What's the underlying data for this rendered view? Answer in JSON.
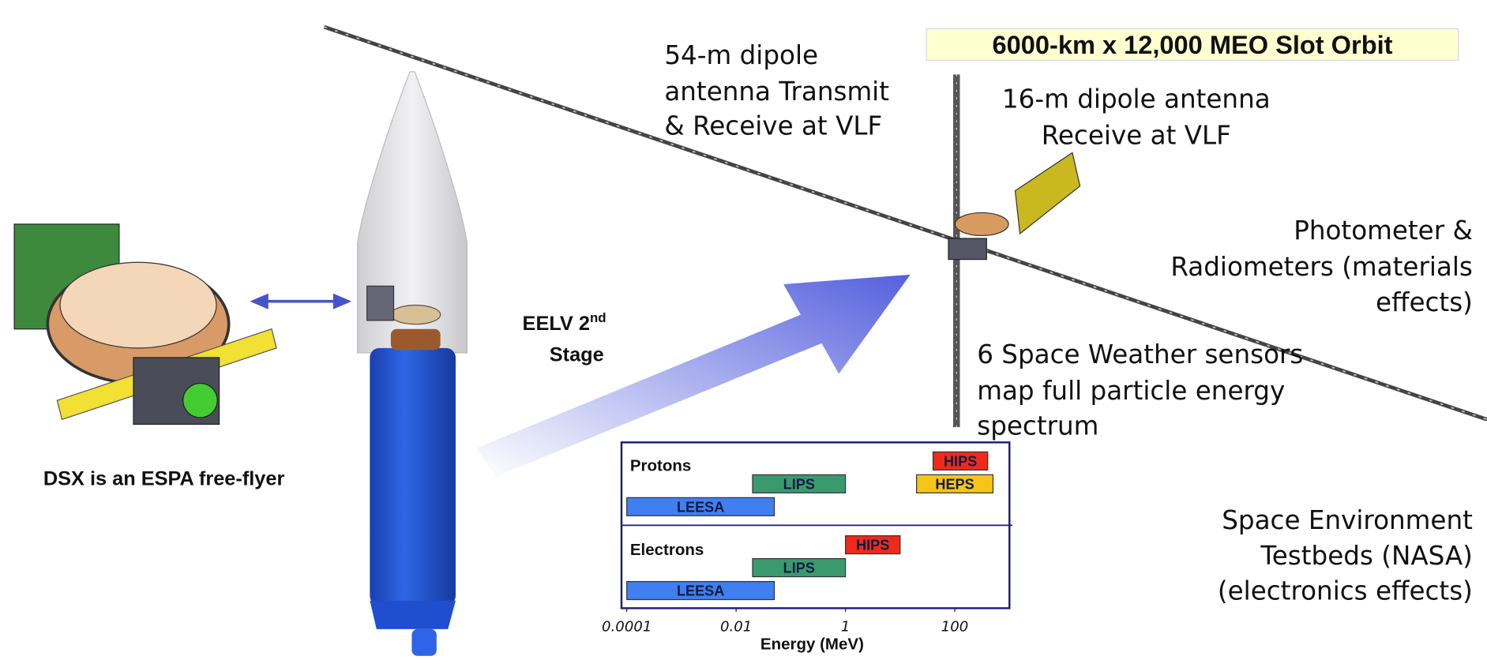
{
  "title_box": "6000-km x 12,000 MEO Slot Orbit",
  "labels": {
    "long_antenna": [
      "54-m dipole",
      "antenna Transmit",
      "& Receive at VLF"
    ],
    "short_antenna": [
      "16-m dipole antenna",
      "Receive at VLF"
    ],
    "photometer": [
      "Photometer &",
      "Radiometers (materials",
      "effects)"
    ],
    "sensors": [
      "6 Space Weather sensors",
      "map full particle energy",
      "spectrum"
    ],
    "testbeds": [
      "Space Environment",
      "Testbeds (NASA)",
      "(electronics effects)"
    ],
    "eelv": {
      "text": "EELV 2",
      "superscript": "nd",
      "line2": "Stage"
    },
    "espa": "DSX is an ESPA free-flyer"
  },
  "energy_chart": {
    "x_label": "Energy (MeV)",
    "log_scale": true,
    "xlim": [
      8e-05,
      1000
    ],
    "xticks": [
      0.0001,
      0.01,
      1,
      100
    ],
    "groups": [
      {
        "name": "Protons",
        "rows": [
          [
            {
              "name": "HIPS",
              "range": [
                40,
                400
              ],
              "color": "#ee2a1a"
            }
          ],
          [
            {
              "name": "LIPS",
              "range": [
                0.02,
                1
              ],
              "color": "#3a9a6e"
            },
            {
              "name": "HEPS",
              "range": [
                20,
                500
              ],
              "color": "#f5c518"
            }
          ],
          [
            {
              "name": "LEESA",
              "range": [
                0.0001,
                0.05
              ],
              "color": "#3f7fef"
            }
          ]
        ]
      },
      {
        "name": "Electrons",
        "rows": [
          [
            {
              "name": "HIPS",
              "range": [
                1,
                10
              ],
              "color": "#ee2a1a"
            }
          ],
          [
            {
              "name": "LIPS",
              "range": [
                0.02,
                1
              ],
              "color": "#3a9a6e"
            }
          ],
          [
            {
              "name": "LEESA",
              "range": [
                0.0001,
                0.05
              ],
              "color": "#3f7fef"
            }
          ]
        ]
      }
    ]
  }
}
